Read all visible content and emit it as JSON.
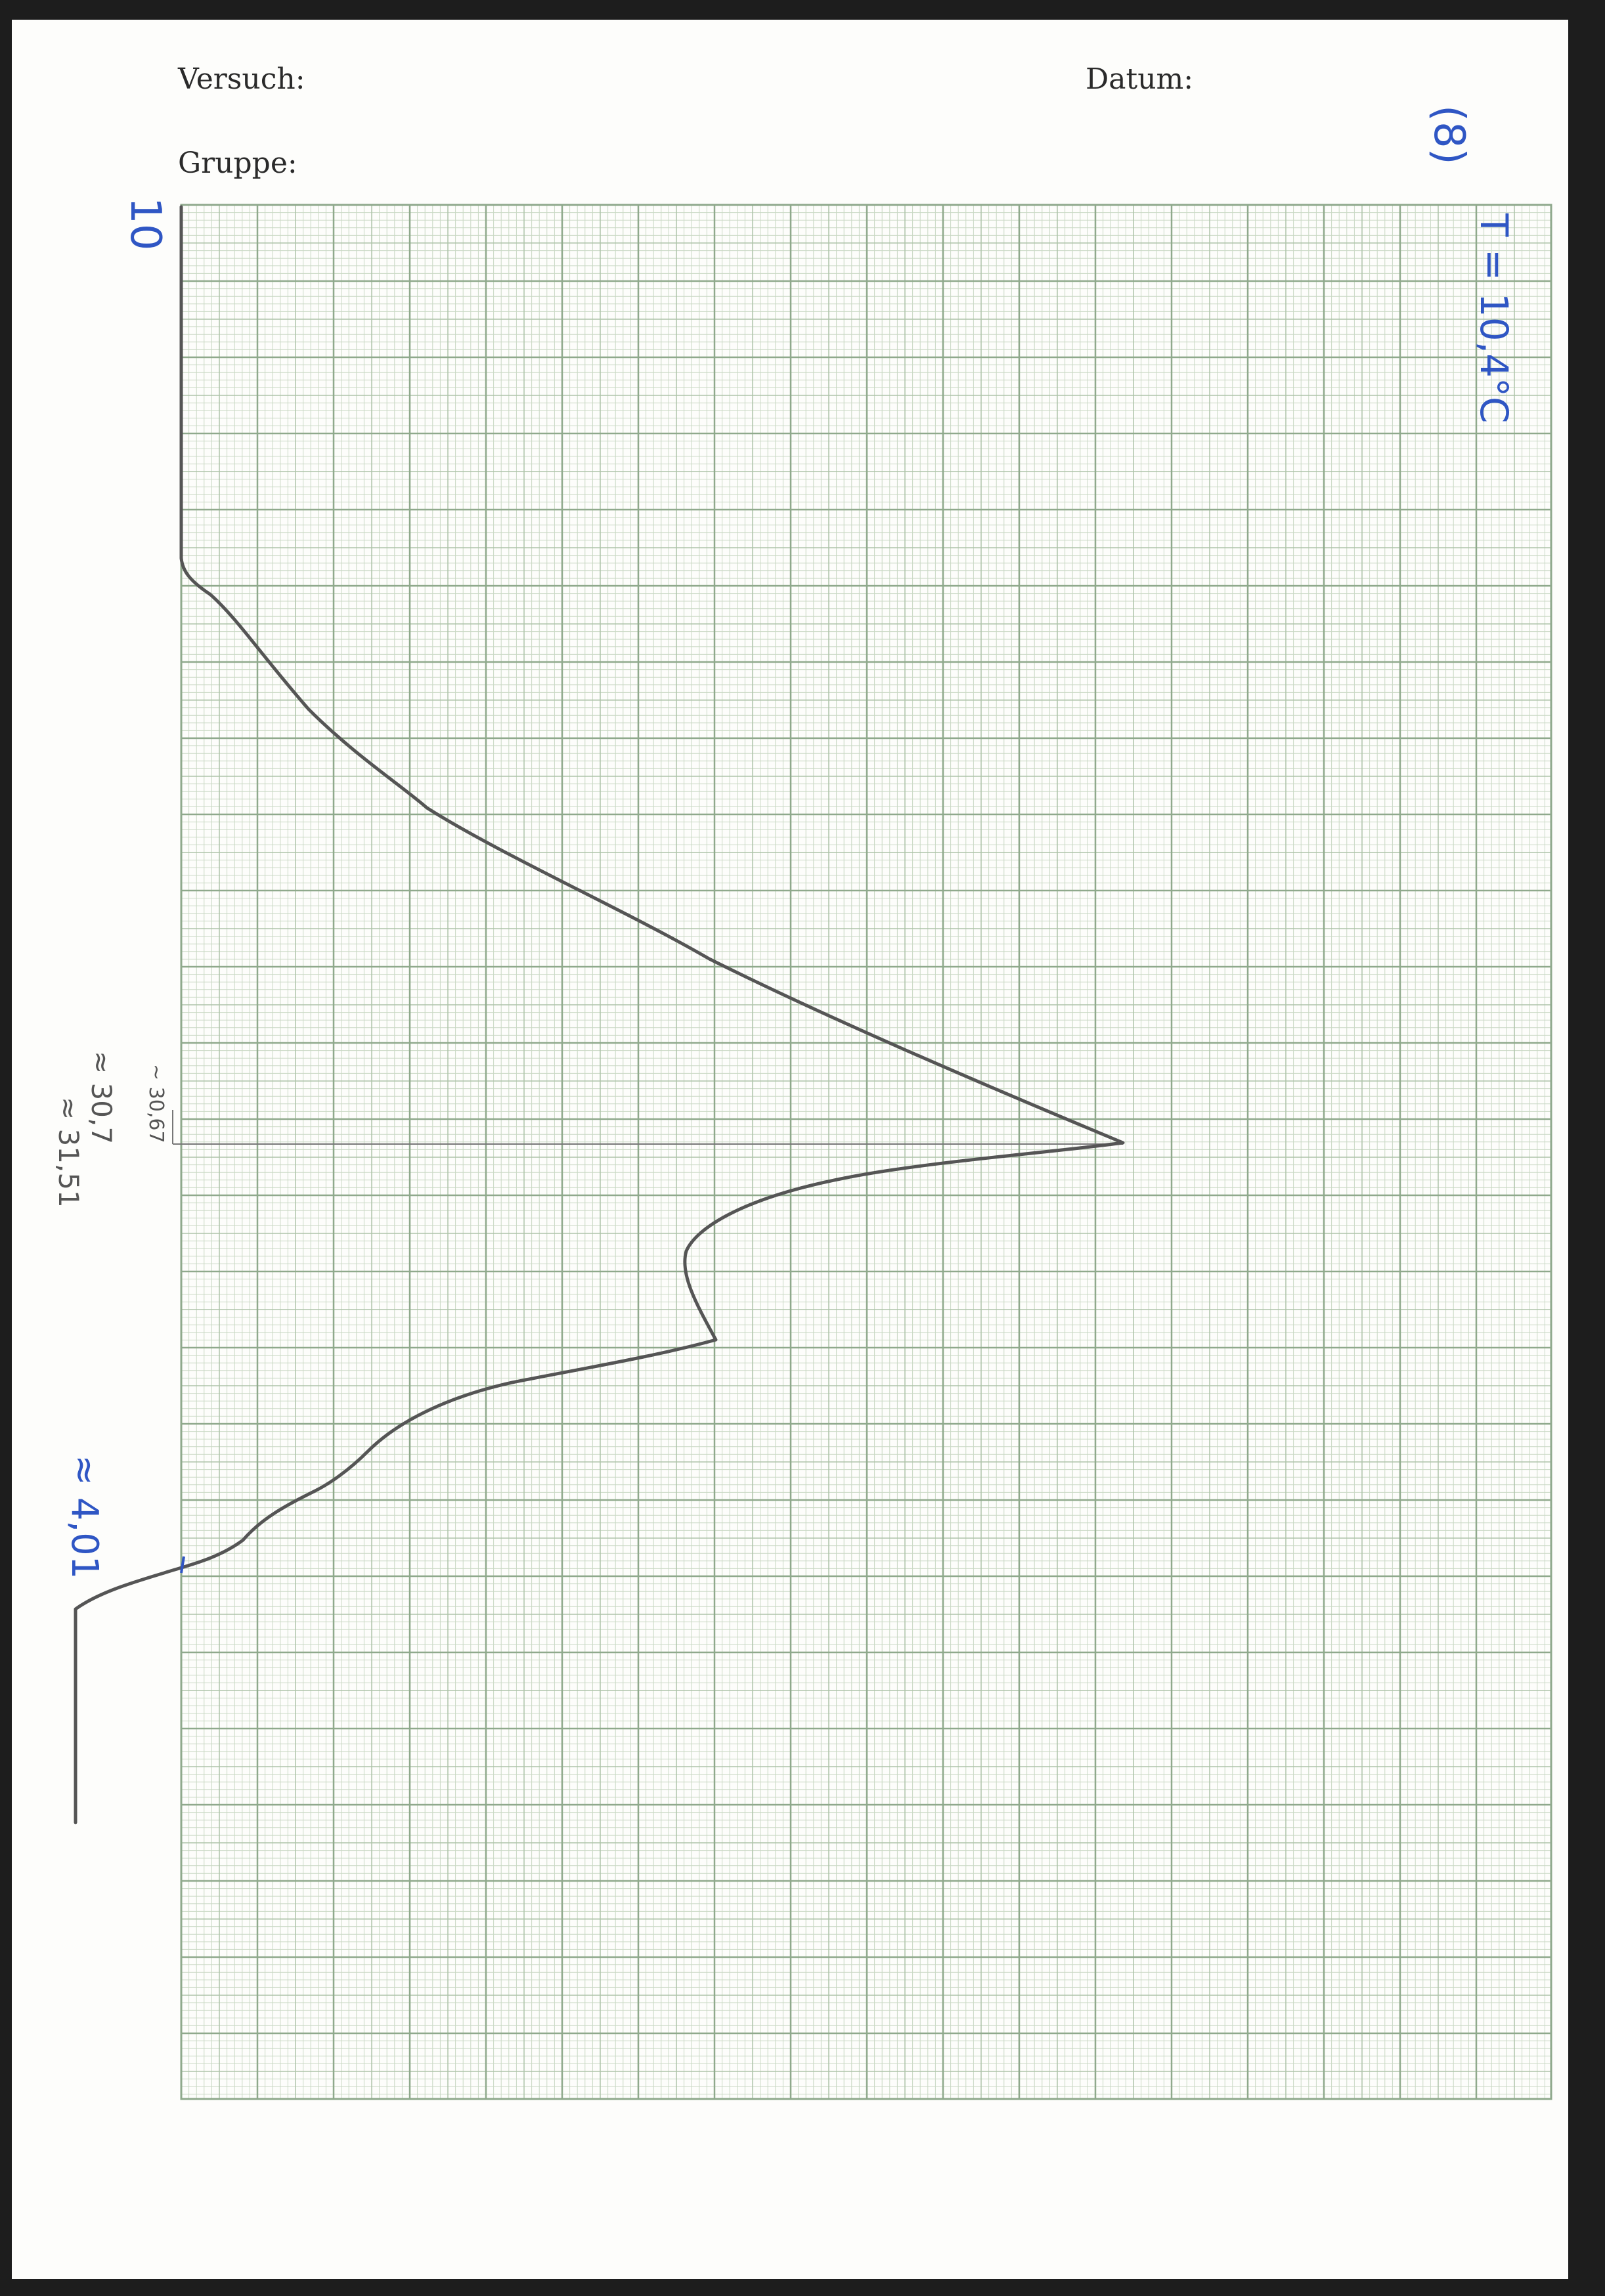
{
  "header": {
    "versuch_label": "Versuch:",
    "datum_label": "Datum:",
    "gruppe_label": "Gruppe:"
  },
  "annotations": {
    "page_number": "(8)",
    "temperature": "T = 10,4°C",
    "top_marker": "10",
    "peak_note_1": "~ 30,67",
    "peak_note_2": "≈ 30,7",
    "peak_note_3": "≈ 31,51",
    "onset_note": "≈ 4,01"
  },
  "colors": {
    "grid_major": "#8fa98c",
    "grid_minor": "#c9d8c4",
    "trace": "#555555",
    "ink_blue": "#2f56c4"
  }
}
